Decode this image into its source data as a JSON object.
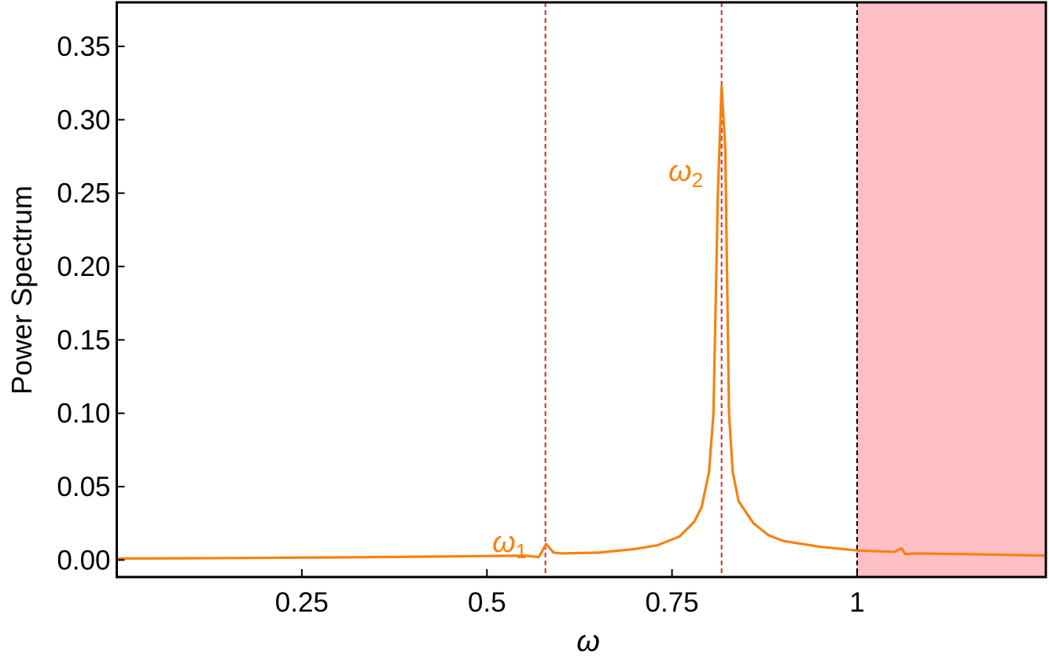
{
  "chart_data": {
    "type": "line",
    "xlabel": "ω",
    "ylabel": "Power Spectrum",
    "xlim": [
      0,
      1.255
    ],
    "ylim": [
      -0.0116,
      0.38
    ],
    "xticks": [
      0.25,
      0.5,
      0.75,
      1
    ],
    "yticks": [
      {
        "value": 0,
        "label": "0.00"
      },
      {
        "value": 0.05,
        "label": "0.05"
      },
      {
        "value": 0.1,
        "label": "0.10"
      },
      {
        "value": 0.15,
        "label": "0.15"
      },
      {
        "value": 0.2,
        "label": "0.20"
      },
      {
        "value": 0.25,
        "label": "0.25"
      },
      {
        "value": 0.3,
        "label": "0.30"
      },
      {
        "value": 0.35,
        "label": "0.35"
      }
    ],
    "shaded_from": 1,
    "shade_color": "#ffbfc6",
    "vlines": [
      {
        "x": 0.579,
        "color": "#d62728"
      },
      {
        "x": 0.817,
        "color": "#d62728"
      },
      {
        "x": 1,
        "color": "#000000"
      }
    ],
    "annotations": [
      {
        "text": "ω",
        "subscript": "1"
      },
      {
        "text": "ω",
        "subscript": "2"
      }
    ],
    "series": [
      {
        "color": "#f7820f",
        "x": [
          0,
          0.1,
          0.2,
          0.3,
          0.4,
          0.5,
          0.55,
          0.57,
          0.58,
          0.59,
          0.6,
          0.65,
          0.7,
          0.73,
          0.76,
          0.78,
          0.79,
          0.8,
          0.806,
          0.812,
          0.817,
          0.822,
          0.827,
          0.832,
          0.84,
          0.86,
          0.88,
          0.9,
          0.95,
          1.0,
          1.05,
          1.06,
          1.065,
          1.08,
          1.15,
          1.255
        ],
        "values": [
          0.001,
          0.0012,
          0.0015,
          0.0018,
          0.0022,
          0.0027,
          0.003,
          0.002,
          0.011,
          0.005,
          0.0045,
          0.005,
          0.0075,
          0.01,
          0.016,
          0.026,
          0.036,
          0.06,
          0.1,
          0.25,
          0.323,
          0.28,
          0.1,
          0.06,
          0.04,
          0.025,
          0.017,
          0.013,
          0.009,
          0.0065,
          0.0055,
          0.008,
          0.004,
          0.0045,
          0.004,
          0.003
        ]
      }
    ]
  }
}
